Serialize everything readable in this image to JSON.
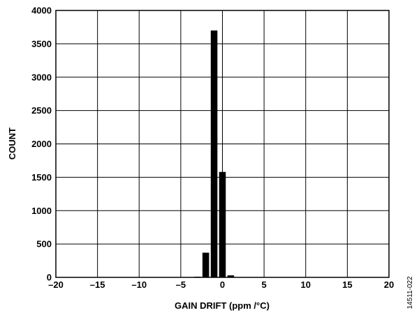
{
  "chart_data": {
    "type": "bar",
    "xlabel": "GAIN DRIFT (ppm /°C)",
    "ylabel": "COUNT",
    "xlim": [
      -20,
      20
    ],
    "ylim": [
      0,
      4000
    ],
    "xticks": [
      -20,
      -15,
      -10,
      -5,
      0,
      5,
      10,
      15,
      20
    ],
    "xtick_labels": [
      "–20",
      "–15",
      "–10",
      "–5",
      "0",
      "5",
      "10",
      "15",
      "20"
    ],
    "yticks": [
      0,
      500,
      1000,
      1500,
      2000,
      2500,
      3000,
      3500,
      4000
    ],
    "ytick_labels": [
      "0",
      "500",
      "1000",
      "1500",
      "2000",
      "2500",
      "3000",
      "3500",
      "4000"
    ],
    "grid": true,
    "bin_width": 1,
    "bins": [
      {
        "x": -3,
        "value": 10
      },
      {
        "x": -2,
        "value": 370
      },
      {
        "x": -1,
        "value": 3700
      },
      {
        "x": 0,
        "value": 1580
      },
      {
        "x": 1,
        "value": 30
      }
    ],
    "bar_color": "#000000"
  },
  "figure_id": "14511-022"
}
